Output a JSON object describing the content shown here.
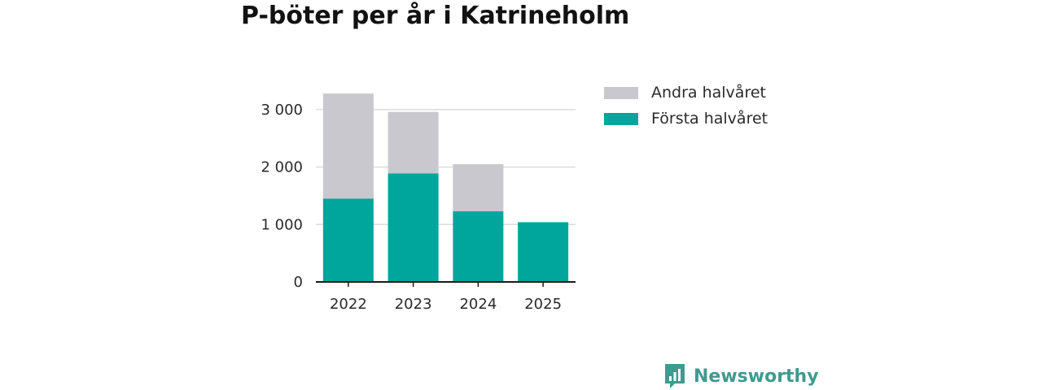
{
  "colors": {
    "first_half": "#00a69c",
    "second_half": "#c8c8ce",
    "brand": "#3f9a8f",
    "grid": "#dcdcdc",
    "axis": "#1a1a1a"
  },
  "chart_data": {
    "type": "bar",
    "stacked": true,
    "title": "P-böter per år i Katrineholm",
    "xlabel": "",
    "ylabel": "",
    "categories": [
      "2022",
      "2023",
      "2024",
      "2025"
    ],
    "series": [
      {
        "name": "Första halvåret",
        "values": [
          1450,
          1890,
          1230,
          1040
        ]
      },
      {
        "name": "Andra halvåret",
        "values": [
          1830,
          1070,
          820,
          0
        ]
      }
    ],
    "ylim": [
      0,
      3300
    ],
    "yticks": [
      0,
      1000,
      2000,
      3000
    ],
    "ytick_labels": [
      "0",
      "1 000",
      "2 000",
      "3 000"
    ],
    "grid": true,
    "legend_position": "right",
    "legend": [
      "Andra halvåret",
      "Första halvåret"
    ]
  },
  "branding": {
    "logo_icon": "newsworthy-chart-icon",
    "name": "Newsworthy"
  }
}
